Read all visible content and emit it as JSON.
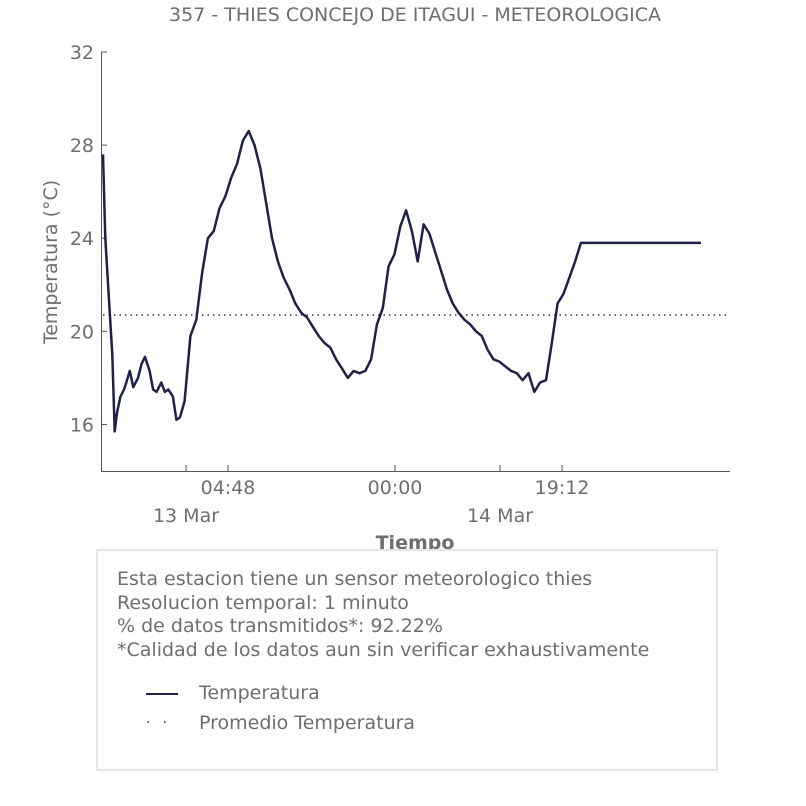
{
  "chart_data": {
    "type": "line",
    "title": "357 - THIES CONCEJO DE ITAGUI - METEOROLOGICA",
    "xlabel": "Tiempo",
    "ylabel": "Temperatura (°C)",
    "ylim": [
      14,
      32
    ],
    "yticks": [
      "32",
      "28",
      "24",
      "20",
      "16"
    ],
    "xticks_time": [
      "04:48",
      "00:00",
      "19:12"
    ],
    "xticks_date": [
      "13 Mar",
      "14 Mar"
    ],
    "grid": false,
    "series": [
      {
        "name": "Temperatura",
        "color": "#1f2147",
        "hours_since_start": [
          0.0,
          0.2,
          0.5,
          0.8,
          1.0,
          1.2,
          1.5,
          1.8,
          2.0,
          2.3,
          2.6,
          3.0,
          3.3,
          3.6,
          4.0,
          4.3,
          4.6,
          5.0,
          5.3,
          5.6,
          6.0,
          6.3,
          6.6,
          7.0,
          7.5,
          8.0,
          8.5,
          9.0,
          9.5,
          10.0,
          10.5,
          11.0,
          11.5,
          12.0,
          12.5,
          13.0,
          13.5,
          14.0,
          14.5,
          15.0,
          15.5,
          16.0,
          16.5,
          17.0,
          17.5,
          18.0,
          18.5,
          19.0,
          19.5,
          20.0,
          20.5,
          21.0,
          21.5,
          22.0,
          22.5,
          23.0,
          23.5,
          24.0,
          24.5,
          25.0,
          25.5,
          26.0,
          26.5,
          27.0,
          27.5,
          28.0,
          28.5,
          29.0,
          29.5,
          30.0,
          30.5,
          31.0,
          31.5,
          32.0,
          32.5,
          33.0,
          33.5,
          34.0,
          34.5,
          35.0,
          35.5,
          36.0,
          36.5,
          37.0,
          37.5,
          38.0,
          38.5,
          39.0,
          39.5,
          40.0,
          40.5,
          41.0,
          41.5,
          42.0,
          42.5,
          43.0,
          43.5,
          44.0,
          44.5,
          45.0,
          45.5,
          46.0,
          46.5,
          47.0,
          47.5,
          48.0,
          48.5,
          49.0,
          49.5,
          50.0,
          50.5,
          51.0,
          51.3
        ],
        "values": [
          27.6,
          24.0,
          21.5,
          19.0,
          15.7,
          16.5,
          17.2,
          17.5,
          17.8,
          18.3,
          17.6,
          18.0,
          18.6,
          18.9,
          18.3,
          17.5,
          17.4,
          17.8,
          17.4,
          17.5,
          17.2,
          16.2,
          16.3,
          17.0,
          19.8,
          20.5,
          22.5,
          24.0,
          24.3,
          25.3,
          25.8,
          26.6,
          27.2,
          28.2,
          28.6,
          28.0,
          27.0,
          25.5,
          24.0,
          23.0,
          22.3,
          21.8,
          21.2,
          20.8,
          20.6,
          20.2,
          19.8,
          19.5,
          19.3,
          18.8,
          18.4,
          18.0,
          18.3,
          18.2,
          18.3,
          18.8,
          20.3,
          21.0,
          22.8,
          23.3,
          24.5,
          25.2,
          24.3,
          23.0,
          24.6,
          24.2,
          23.4,
          22.6,
          21.8,
          21.2,
          20.8,
          20.5,
          20.3,
          20.0,
          19.8,
          19.2,
          18.8,
          18.7,
          18.5,
          18.3,
          18.2,
          17.9,
          18.2,
          17.4,
          17.8,
          17.9,
          19.5,
          21.2,
          21.6,
          22.3,
          23.0,
          23.8,
          23.8,
          23.8,
          23.8,
          23.8,
          23.8,
          23.8,
          23.8,
          23.8,
          23.8,
          23.8,
          23.8,
          23.8,
          23.8,
          23.8,
          23.8,
          23.8,
          23.8,
          23.8,
          23.8,
          23.8,
          23.8
        ]
      },
      {
        "name": "Promedio Temperatura",
        "color": "#333355",
        "style": "dotted",
        "constant_value": 20.7
      }
    ]
  },
  "info": {
    "lines": [
      "Esta estacion tiene un sensor meteorologico thies",
      "Resolucion temporal: 1 minuto",
      "% de datos transmitidos*: 92.22%",
      "*Calidad de los datos aun sin verificar exhaustivamente"
    ]
  },
  "legend": {
    "series_label": "Temperatura",
    "mean_label": "Promedio Temperatura"
  }
}
